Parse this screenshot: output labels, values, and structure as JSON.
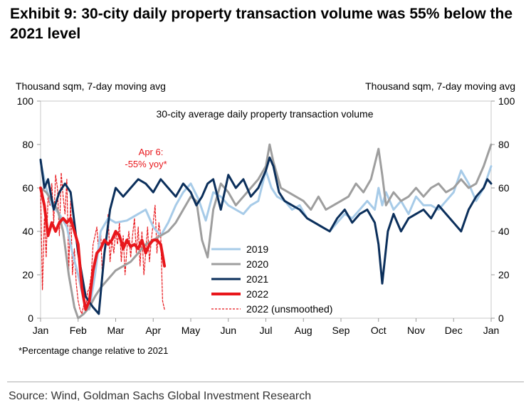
{
  "title": "Exhibit 9: 30-city daily property transaction volume was 55% below the 2021 level",
  "axis_unit_left": "Thousand sqm, 7-day moving avg",
  "axis_unit_right": "Thousand sqm, 7-day moving avg",
  "footnote": "*Percentage change relative to 2021",
  "source": "Source: Wind, Goldman Sachs Global Investment Research",
  "chart_data": {
    "type": "line",
    "title": "30-city average daily property transaction volume",
    "xlabel": "",
    "ylabel": "Thousand sqm, 7-day moving avg",
    "xlim": [
      0,
      12
    ],
    "ylim": [
      0,
      100
    ],
    "y_ticks": [
      0,
      20,
      40,
      60,
      80,
      100
    ],
    "x_ticks": [
      {
        "pos": 0,
        "label": "Jan"
      },
      {
        "pos": 1,
        "label": "Feb"
      },
      {
        "pos": 2,
        "label": "Mar"
      },
      {
        "pos": 3,
        "label": "Apr"
      },
      {
        "pos": 4,
        "label": "May"
      },
      {
        "pos": 5,
        "label": "Jun"
      },
      {
        "pos": 6,
        "label": "Jul"
      },
      {
        "pos": 7,
        "label": "Aug"
      },
      {
        "pos": 8,
        "label": "Sep"
      },
      {
        "pos": 9,
        "label": "Oct"
      },
      {
        "pos": 10,
        "label": "Nov"
      },
      {
        "pos": 11,
        "label": "Dec"
      },
      {
        "pos": 12,
        "label": "Jan"
      }
    ],
    "annotation": {
      "text_line1": "Apr 6:",
      "text_line2": "-55% yoy*",
      "color": "#e8161b"
    },
    "series": [
      {
        "name": "2019",
        "color": "#a7cbe8",
        "width": 3,
        "dash": false,
        "x": [
          0,
          0.15,
          0.3,
          0.5,
          0.7,
          0.85,
          1.0,
          1.15,
          1.3,
          1.45,
          1.6,
          1.8,
          2.0,
          2.3,
          2.6,
          2.8,
          3.0,
          3.2,
          3.4,
          3.6,
          3.8,
          4.0,
          4.2,
          4.4,
          4.6,
          4.8,
          5.0,
          5.2,
          5.4,
          5.6,
          5.8,
          6.0,
          6.15,
          6.3,
          6.5,
          6.7,
          6.9,
          7.1,
          7.3,
          7.5,
          7.7,
          7.9,
          8.1,
          8.3,
          8.5,
          8.7,
          8.9,
          9.0,
          9.1,
          9.2,
          9.4,
          9.6,
          9.8,
          10.0,
          10.2,
          10.4,
          10.6,
          10.8,
          11.0,
          11.2,
          11.4,
          11.6,
          11.8,
          12.0
        ],
        "values": [
          72,
          60,
          52,
          48,
          42,
          30,
          20,
          8,
          4,
          20,
          40,
          46,
          44,
          45,
          48,
          50,
          42,
          38,
          44,
          52,
          58,
          62,
          55,
          45,
          58,
          56,
          52,
          50,
          48,
          52,
          54,
          68,
          60,
          56,
          54,
          50,
          52,
          46,
          44,
          42,
          40,
          44,
          48,
          46,
          50,
          54,
          50,
          60,
          52,
          58,
          50,
          54,
          48,
          56,
          52,
          52,
          50,
          54,
          58,
          68,
          62,
          54,
          60,
          70
        ]
      },
      {
        "name": "2020",
        "color": "#9e9e9e",
        "width": 3,
        "dash": false,
        "x": [
          0,
          0.15,
          0.3,
          0.45,
          0.6,
          0.75,
          0.9,
          1.0,
          1.15,
          1.3,
          1.45,
          1.6,
          1.8,
          2.0,
          2.2,
          2.4,
          2.6,
          2.8,
          3.0,
          3.2,
          3.4,
          3.6,
          3.8,
          4.0,
          4.15,
          4.3,
          4.45,
          4.6,
          4.8,
          5.0,
          5.2,
          5.4,
          5.6,
          5.8,
          6.0,
          6.1,
          6.2,
          6.4,
          6.6,
          6.8,
          7.0,
          7.2,
          7.4,
          7.6,
          7.8,
          8.0,
          8.2,
          8.4,
          8.6,
          8.8,
          9.0,
          9.1,
          9.2,
          9.4,
          9.6,
          9.8,
          10.0,
          10.2,
          10.4,
          10.6,
          10.8,
          11.0,
          11.2,
          11.4,
          11.6,
          11.8,
          12.0
        ],
        "values": [
          60,
          58,
          54,
          50,
          40,
          20,
          5,
          0,
          2,
          5,
          10,
          14,
          18,
          22,
          24,
          26,
          30,
          34,
          36,
          38,
          40,
          44,
          50,
          56,
          54,
          36,
          28,
          50,
          62,
          58,
          52,
          56,
          60,
          64,
          70,
          80,
          72,
          60,
          58,
          56,
          54,
          50,
          56,
          50,
          52,
          54,
          56,
          62,
          58,
          64,
          78,
          66,
          52,
          58,
          54,
          56,
          60,
          56,
          60,
          62,
          58,
          60,
          64,
          60,
          62,
          70,
          80
        ]
      },
      {
        "name": "2021",
        "color": "#0b2f5b",
        "width": 3,
        "dash": false,
        "x": [
          0,
          0.1,
          0.2,
          0.35,
          0.5,
          0.65,
          0.8,
          1.0,
          1.2,
          1.4,
          1.55,
          1.7,
          1.85,
          2.0,
          2.2,
          2.4,
          2.6,
          2.8,
          3.0,
          3.2,
          3.4,
          3.6,
          3.8,
          4.0,
          4.15,
          4.3,
          4.45,
          4.6,
          4.8,
          5.0,
          5.2,
          5.4,
          5.6,
          5.8,
          6.0,
          6.1,
          6.2,
          6.35,
          6.5,
          6.7,
          6.9,
          7.1,
          7.3,
          7.5,
          7.7,
          7.9,
          8.1,
          8.3,
          8.5,
          8.7,
          8.9,
          9.0,
          9.1,
          9.25,
          9.4,
          9.6,
          9.8,
          10.0,
          10.2,
          10.4,
          10.6,
          10.8,
          11.0,
          11.2,
          11.4,
          11.6,
          11.8,
          11.9,
          12.0
        ],
        "values": [
          73,
          60,
          64,
          50,
          58,
          62,
          58,
          30,
          10,
          5,
          2,
          30,
          50,
          60,
          56,
          60,
          64,
          62,
          58,
          64,
          60,
          56,
          62,
          58,
          52,
          56,
          62,
          64,
          50,
          66,
          60,
          64,
          56,
          60,
          68,
          74,
          70,
          58,
          54,
          52,
          50,
          46,
          44,
          42,
          40,
          46,
          50,
          44,
          48,
          50,
          44,
          34,
          16,
          40,
          48,
          40,
          46,
          48,
          50,
          46,
          52,
          48,
          44,
          40,
          50,
          56,
          60,
          64,
          62
        ]
      },
      {
        "name": "2022",
        "color": "#e8161b",
        "width": 4,
        "dash": false,
        "x": [
          0,
          0.1,
          0.2,
          0.3,
          0.4,
          0.5,
          0.6,
          0.7,
          0.8,
          0.9,
          1.0,
          1.1,
          1.2,
          1.3,
          1.4,
          1.5,
          1.6,
          1.7,
          1.8,
          1.9,
          2.0,
          2.1,
          2.2,
          2.3,
          2.4,
          2.5,
          2.6,
          2.7,
          2.8,
          2.9,
          3.0,
          3.1,
          3.2,
          3.3
        ],
        "values": [
          60,
          52,
          38,
          44,
          40,
          44,
          46,
          44,
          46,
          40,
          34,
          14,
          4,
          8,
          22,
          30,
          32,
          36,
          34,
          36,
          40,
          38,
          32,
          36,
          33,
          34,
          32,
          36,
          30,
          34,
          36,
          36,
          34,
          24
        ]
      },
      {
        "name": "2022 (unsmoothed)",
        "color": "#e8161b",
        "width": 1.2,
        "dash": true,
        "x": [
          0,
          0.05,
          0.1,
          0.15,
          0.2,
          0.25,
          0.3,
          0.35,
          0.4,
          0.45,
          0.5,
          0.55,
          0.6,
          0.65,
          0.7,
          0.75,
          0.8,
          0.85,
          0.9,
          0.95,
          1.0,
          1.05,
          1.1,
          1.15,
          1.2,
          1.25,
          1.3,
          1.35,
          1.4,
          1.45,
          1.5,
          1.55,
          1.6,
          1.65,
          1.7,
          1.75,
          1.8,
          1.85,
          1.9,
          1.95,
          2.0,
          2.05,
          2.1,
          2.15,
          2.2,
          2.25,
          2.3,
          2.35,
          2.4,
          2.45,
          2.5,
          2.55,
          2.6,
          2.65,
          2.7,
          2.75,
          2.8,
          2.85,
          2.9,
          2.95,
          3.0,
          3.05,
          3.1,
          3.15,
          3.2,
          3.25,
          3.3
        ],
        "values": [
          60,
          13,
          46,
          28,
          56,
          52,
          62,
          44,
          66,
          60,
          38,
          67,
          56,
          48,
          64,
          22,
          54,
          20,
          32,
          16,
          8,
          4,
          2,
          6,
          3,
          12,
          14,
          20,
          34,
          38,
          42,
          30,
          40,
          18,
          30,
          34,
          48,
          26,
          36,
          30,
          40,
          34,
          44,
          26,
          38,
          20,
          32,
          40,
          28,
          38,
          46,
          30,
          42,
          24,
          40,
          20,
          30,
          42,
          26,
          36,
          44,
          52,
          30,
          44,
          38,
          8,
          4
        ]
      }
    ]
  }
}
